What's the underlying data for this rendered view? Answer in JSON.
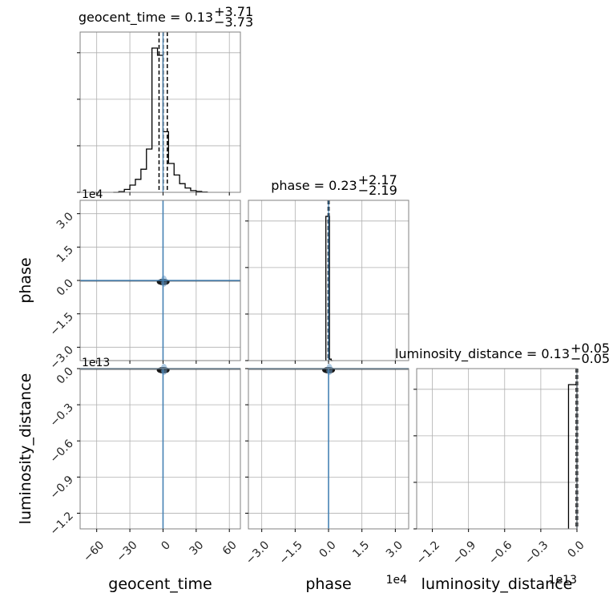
{
  "chart_data": {
    "type": "corner",
    "parameters": [
      "geocent_time",
      "phase",
      "luminosity_distance"
    ],
    "colors": {
      "hist": "#000000",
      "truth": "#4682b4",
      "grid": "#b0b0b0",
      "frame": "#808080",
      "scatter": "#6fa0cc"
    },
    "titles": {
      "geocent_time": {
        "name": "geocent_time",
        "median": "0.13",
        "plus": "+3.71",
        "minus": "−3.73"
      },
      "phase": {
        "name": "phase",
        "median": "0.23",
        "plus": "+2.17",
        "minus": "−2.19"
      },
      "luminosity_distance": {
        "name": "luminosity_distance",
        "median": "0.13",
        "plus": "+0.05",
        "minus": "−0.05"
      }
    },
    "axes": {
      "geocent_time": {
        "label": "geocent_time",
        "range": [
          -75,
          70
        ],
        "ticks": [
          -60,
          -30,
          0,
          30,
          60
        ],
        "tick_labels": [
          "−60",
          "−30",
          "0",
          "30",
          "60"
        ],
        "offset": ""
      },
      "phase": {
        "label": "phase",
        "range": [
          -3.6,
          3.6
        ],
        "ticks": [
          -3.0,
          -1.5,
          0.0,
          1.5,
          3.0
        ],
        "tick_labels": [
          "−3.0",
          "−1.5",
          "0.0",
          "1.5",
          "3.0"
        ],
        "offset": "1e4"
      },
      "luminosity_distance": {
        "label": "luminosity_distance",
        "range": [
          -1.33,
          0.0
        ],
        "ticks": [
          -1.2,
          -0.9,
          -0.6,
          -0.3,
          0.0
        ],
        "tick_labels": [
          "−1.2",
          "−0.9",
          "−0.6",
          "−0.3",
          "0.0"
        ],
        "offset": "1e13"
      }
    },
    "truths": {
      "geocent_time": 0,
      "phase": 0.0,
      "luminosity_distance": 0.0
    },
    "histograms": {
      "geocent_time": {
        "bins": [
          -45,
          -40,
          -35,
          -30,
          -25,
          -20,
          -15,
          -10,
          -5,
          0,
          5,
          10,
          15,
          20,
          25,
          30,
          35,
          40
        ],
        "counts": [
          0,
          0.005,
          0.02,
          0.05,
          0.09,
          0.16,
          0.3,
          1.0,
          0.95,
          0.42,
          0.2,
          0.12,
          0.06,
          0.03,
          0.012,
          0.006,
          0.002
        ],
        "quantiles": [
          -3.6,
          0.13,
          3.84
        ]
      },
      "phase": {
        "bins": [
          -0.12,
          -0.04,
          0.04,
          0.12,
          0.2
        ],
        "counts": [
          1.0,
          1.0,
          0.01,
          0
        ],
        "quantiles": [
          -0.0196,
          0.0023,
          0.024
        ]
      },
      "luminosity_distance": {
        "bins": [
          -0.07,
          -0.035,
          0.0
        ],
        "counts": [
          1.0,
          1.0
        ],
        "quantiles": [
          -0.0065,
          0.0,
          0.005
        ]
      }
    },
    "grid": true
  }
}
